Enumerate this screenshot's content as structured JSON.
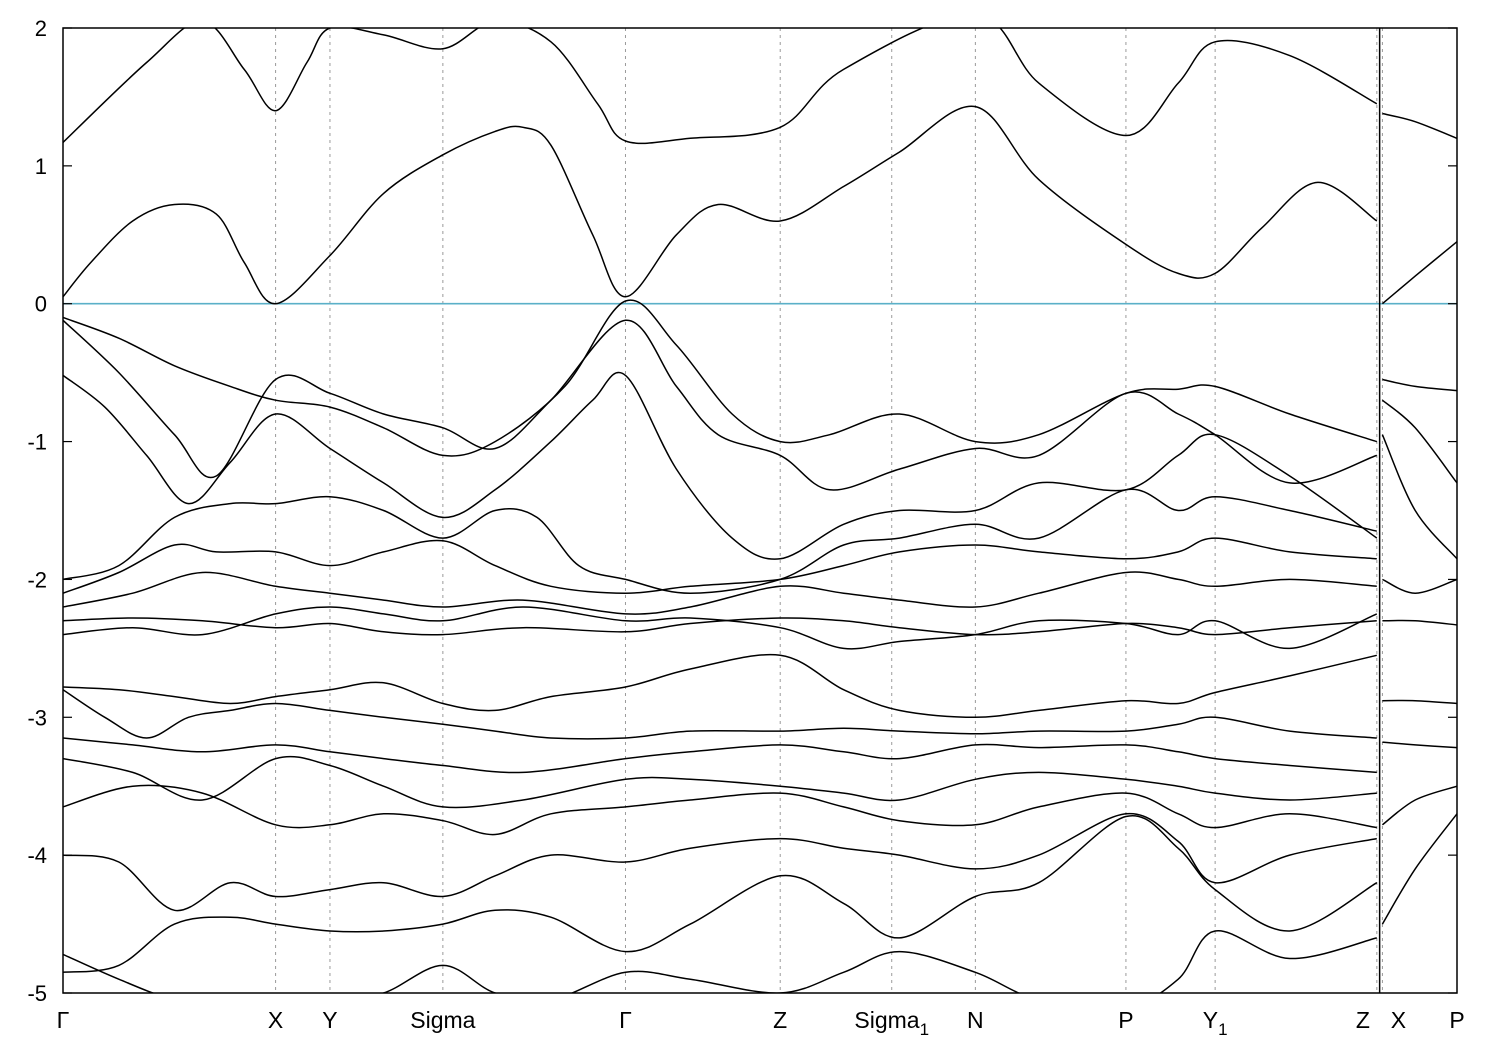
{
  "chart_data": {
    "type": "line",
    "title": "",
    "xlabel": "",
    "ylabel": "",
    "ylim": [
      -5,
      2
    ],
    "xlim": [
      0,
      1
    ],
    "yticks": [
      "-5",
      "-4",
      "-3",
      "-2",
      "-1",
      "0",
      "1",
      "2"
    ],
    "xticks": [
      {
        "label": "Γ",
        "x": 0.0
      },
      {
        "label": "X",
        "x": 0.1525
      },
      {
        "label": "Y",
        "x": 0.1915
      },
      {
        "label": "Sigma",
        "x": 0.2725
      },
      {
        "label": "Γ",
        "x": 0.4035
      },
      {
        "label": "Z",
        "x": 0.5145
      },
      {
        "label": "Sigma",
        "sub": "1",
        "x": 0.5945
      },
      {
        "label": "N",
        "x": 0.6545
      },
      {
        "label": "P",
        "x": 0.7625
      },
      {
        "label": "Y",
        "sub": "1",
        "x": 0.8265
      },
      {
        "label": "Z",
        "x": 0.9425
      },
      {
        "label": "X",
        "x": 0.9465
      },
      {
        "label": "P",
        "x": 1.0
      }
    ],
    "break_at": 0.9445,
    "fermi_level": 0,
    "grid": "vertical dashed at high-symmetry points",
    "legend": "none",
    "series": [
      {
        "x": [
          0,
          0.06,
          0.1,
          0.13,
          0.1525,
          0.175,
          0.1915,
          0.23,
          0.2725,
          0.31,
          0.35,
          0.3835,
          0.4035,
          0.45,
          0.5145,
          0.56,
          0.6545,
          0.7,
          0.7625,
          0.8,
          0.8265,
          0.88,
          0.9425
        ],
        "y": [
          1.17,
          1.75,
          2.05,
          1.7,
          1.4,
          1.75,
          2.0,
          1.95,
          1.85,
          2.05,
          1.9,
          1.45,
          1.18,
          1.2,
          1.28,
          1.7,
          2.1,
          1.6,
          1.22,
          1.6,
          1.9,
          1.8,
          1.45
        ]
      },
      {
        "x": [
          0,
          0.02,
          0.05,
          0.08,
          0.11,
          0.13,
          0.1525,
          0.1915,
          0.23,
          0.2725,
          0.31,
          0.33,
          0.35,
          0.38,
          0.4035,
          0.44,
          0.47,
          0.5145,
          0.56,
          0.6,
          0.6545,
          0.7,
          0.7625,
          0.8,
          0.8265,
          0.86,
          0.9,
          0.9425
        ],
        "y": [
          0.05,
          0.3,
          0.6,
          0.72,
          0.65,
          0.3,
          0.0,
          0.35,
          0.8,
          1.08,
          1.25,
          1.28,
          1.15,
          0.5,
          0.05,
          0.5,
          0.72,
          0.6,
          0.85,
          1.1,
          1.43,
          0.9,
          0.43,
          0.22,
          0.22,
          0.55,
          0.88,
          0.6
        ]
      },
      {
        "x": [
          0,
          0.04,
          0.08,
          0.12,
          0.1525,
          0.1915,
          0.23,
          0.2725,
          0.31,
          0.36,
          0.4035,
          0.44,
          0.48,
          0.5145,
          0.55,
          0.6,
          0.6545,
          0.7,
          0.7625,
          0.8,
          0.8265,
          0.88,
          0.9425
        ],
        "y": [
          -0.1,
          -0.25,
          -0.45,
          -0.6,
          -0.7,
          -0.75,
          -0.9,
          -1.1,
          -1.0,
          -0.6,
          0.02,
          -0.3,
          -0.8,
          -1.0,
          -0.95,
          -0.8,
          -1.0,
          -0.95,
          -0.65,
          -0.62,
          -0.6,
          -0.8,
          -1.0
        ]
      },
      {
        "x": [
          0,
          0.04,
          0.08,
          0.11,
          0.1525,
          0.1915,
          0.23,
          0.2725,
          0.31,
          0.35,
          0.4035,
          0.44,
          0.47,
          0.5145,
          0.55,
          0.6,
          0.6545,
          0.7,
          0.7625,
          0.8,
          0.8265,
          0.88,
          0.9425
        ],
        "y": [
          -0.12,
          -0.5,
          -0.95,
          -1.25,
          -0.55,
          -0.65,
          -0.8,
          -0.9,
          -1.05,
          -0.7,
          -0.12,
          -0.6,
          -0.95,
          -1.1,
          -1.35,
          -1.2,
          -1.05,
          -1.1,
          -0.65,
          -0.8,
          -0.95,
          -1.3,
          -1.1
        ]
      },
      {
        "x": [
          0,
          0.03,
          0.06,
          0.09,
          0.12,
          0.1525,
          0.1915,
          0.23,
          0.2725,
          0.31,
          0.35,
          0.38,
          0.4035,
          0.44,
          0.48,
          0.5145,
          0.56,
          0.6,
          0.6545,
          0.7,
          0.7625,
          0.8,
          0.8265,
          0.88,
          0.9425
        ],
        "y": [
          -0.52,
          -0.75,
          -1.1,
          -1.45,
          -1.15,
          -0.8,
          -1.05,
          -1.3,
          -1.55,
          -1.35,
          -1.0,
          -0.7,
          -0.52,
          -1.2,
          -1.7,
          -1.85,
          -1.6,
          -1.5,
          -1.5,
          -1.3,
          -1.35,
          -1.1,
          -0.95,
          -1.25,
          -1.7
        ]
      },
      {
        "x": [
          0,
          0.04,
          0.08,
          0.12,
          0.1525,
          0.1915,
          0.23,
          0.2725,
          0.31,
          0.34,
          0.37,
          0.4035,
          0.45,
          0.5145,
          0.56,
          0.6,
          0.6545,
          0.7,
          0.7625,
          0.8,
          0.8265,
          0.88,
          0.9425
        ],
        "y": [
          -2.0,
          -1.9,
          -1.55,
          -1.45,
          -1.45,
          -1.4,
          -1.5,
          -1.7,
          -1.5,
          -1.55,
          -1.9,
          -2.0,
          -2.1,
          -2.0,
          -1.75,
          -1.7,
          -1.6,
          -1.7,
          -1.35,
          -1.5,
          -1.4,
          -1.5,
          -1.65
        ]
      },
      {
        "x": [
          0,
          0.04,
          0.08,
          0.11,
          0.1525,
          0.1915,
          0.23,
          0.2725,
          0.31,
          0.35,
          0.4035,
          0.45,
          0.5145,
          0.56,
          0.6,
          0.6545,
          0.7,
          0.7625,
          0.8,
          0.8265,
          0.88,
          0.9425
        ],
        "y": [
          -2.1,
          -1.95,
          -1.75,
          -1.8,
          -1.8,
          -1.9,
          -1.8,
          -1.72,
          -1.9,
          -2.05,
          -2.1,
          -2.05,
          -2.0,
          -1.9,
          -1.8,
          -1.75,
          -1.8,
          -1.85,
          -1.8,
          -1.7,
          -1.8,
          -1.85
        ]
      },
      {
        "x": [
          0,
          0.05,
          0.1,
          0.1525,
          0.1915,
          0.23,
          0.2725,
          0.33,
          0.4035,
          0.45,
          0.5145,
          0.56,
          0.6,
          0.6545,
          0.7,
          0.7625,
          0.8,
          0.8265,
          0.88,
          0.9425
        ],
        "y": [
          -2.2,
          -2.1,
          -1.95,
          -2.05,
          -2.1,
          -2.15,
          -2.2,
          -2.15,
          -2.25,
          -2.2,
          -2.05,
          -2.1,
          -2.15,
          -2.2,
          -2.1,
          -1.95,
          -2.0,
          -2.05,
          -2.0,
          -2.05
        ]
      },
      {
        "x": [
          0,
          0.05,
          0.1,
          0.1525,
          0.1915,
          0.23,
          0.2725,
          0.33,
          0.4035,
          0.45,
          0.5145,
          0.56,
          0.6,
          0.6545,
          0.7,
          0.7625,
          0.8,
          0.8265,
          0.88,
          0.9425
        ],
        "y": [
          -2.3,
          -2.28,
          -2.3,
          -2.35,
          -2.32,
          -2.38,
          -2.4,
          -2.35,
          -2.38,
          -2.32,
          -2.28,
          -2.3,
          -2.35,
          -2.4,
          -2.38,
          -2.32,
          -2.35,
          -2.4,
          -2.35,
          -2.3
        ]
      },
      {
        "x": [
          0,
          0.05,
          0.1,
          0.1525,
          0.1915,
          0.23,
          0.2725,
          0.33,
          0.4035,
          0.45,
          0.5145,
          0.56,
          0.6,
          0.6545,
          0.7,
          0.7625,
          0.8,
          0.8265,
          0.88,
          0.9425
        ],
        "y": [
          -2.4,
          -2.35,
          -2.4,
          -2.25,
          -2.2,
          -2.25,
          -2.3,
          -2.2,
          -2.3,
          -2.28,
          -2.35,
          -2.5,
          -2.45,
          -2.4,
          -2.3,
          -2.32,
          -2.4,
          -2.3,
          -2.5,
          -2.25
        ]
      },
      {
        "x": [
          0,
          0.04,
          0.08,
          0.12,
          0.1525,
          0.1915,
          0.23,
          0.2725,
          0.31,
          0.35,
          0.4035,
          0.45,
          0.5145,
          0.56,
          0.6,
          0.6545,
          0.7,
          0.7625,
          0.8,
          0.8265,
          0.88,
          0.9425
        ],
        "y": [
          -2.78,
          -2.8,
          -2.85,
          -2.9,
          -2.85,
          -2.8,
          -2.75,
          -2.9,
          -2.95,
          -2.85,
          -2.78,
          -2.65,
          -2.55,
          -2.8,
          -2.95,
          -3.0,
          -2.95,
          -2.88,
          -2.9,
          -2.82,
          -2.7,
          -2.55
        ]
      },
      {
        "x": [
          0,
          0.03,
          0.06,
          0.09,
          0.12,
          0.1525,
          0.1915,
          0.23,
          0.2725,
          0.31,
          0.35,
          0.4035,
          0.45,
          0.5145,
          0.56,
          0.6,
          0.6545,
          0.7,
          0.7625,
          0.8,
          0.8265,
          0.88,
          0.9425
        ],
        "y": [
          -2.8,
          -3.0,
          -3.15,
          -3.0,
          -2.95,
          -2.9,
          -2.95,
          -3.0,
          -3.05,
          -3.1,
          -3.15,
          -3.15,
          -3.1,
          -3.1,
          -3.08,
          -3.1,
          -3.12,
          -3.1,
          -3.1,
          -3.05,
          -3.0,
          -3.1,
          -3.15
        ]
      },
      {
        "x": [
          0,
          0.05,
          0.1,
          0.1525,
          0.1915,
          0.23,
          0.2725,
          0.33,
          0.4035,
          0.45,
          0.5145,
          0.56,
          0.6,
          0.6545,
          0.7,
          0.7625,
          0.8,
          0.8265,
          0.88,
          0.9425
        ],
        "y": [
          -3.15,
          -3.2,
          -3.25,
          -3.2,
          -3.25,
          -3.3,
          -3.35,
          -3.4,
          -3.3,
          -3.25,
          -3.2,
          -3.25,
          -3.3,
          -3.2,
          -3.22,
          -3.2,
          -3.25,
          -3.3,
          -3.35,
          -3.4
        ]
      },
      {
        "x": [
          0,
          0.05,
          0.1,
          0.1525,
          0.1915,
          0.23,
          0.2725,
          0.33,
          0.4035,
          0.45,
          0.5145,
          0.56,
          0.6,
          0.6545,
          0.7,
          0.7625,
          0.8,
          0.8265,
          0.88,
          0.9425
        ],
        "y": [
          -3.3,
          -3.4,
          -3.6,
          -3.3,
          -3.35,
          -3.5,
          -3.65,
          -3.6,
          -3.45,
          -3.45,
          -3.5,
          -3.55,
          -3.6,
          -3.45,
          -3.4,
          -3.45,
          -3.5,
          -3.55,
          -3.6,
          -3.55
        ]
      },
      {
        "x": [
          0,
          0.05,
          0.1,
          0.1525,
          0.1915,
          0.23,
          0.2725,
          0.31,
          0.35,
          0.4035,
          0.45,
          0.5145,
          0.56,
          0.6,
          0.6545,
          0.7,
          0.7625,
          0.8,
          0.8265,
          0.88,
          0.9425
        ],
        "y": [
          -3.65,
          -3.5,
          -3.55,
          -3.78,
          -3.78,
          -3.7,
          -3.75,
          -3.85,
          -3.7,
          -3.65,
          -3.6,
          -3.55,
          -3.65,
          -3.75,
          -3.78,
          -3.65,
          -3.55,
          -3.7,
          -3.8,
          -3.7,
          -3.8
        ]
      },
      {
        "x": [
          0,
          0.04,
          0.08,
          0.12,
          0.1525,
          0.1915,
          0.23,
          0.2725,
          0.31,
          0.35,
          0.4035,
          0.45,
          0.5145,
          0.56,
          0.6,
          0.6545,
          0.7,
          0.7625,
          0.8,
          0.8265,
          0.88,
          0.9425
        ],
        "y": [
          -4.0,
          -4.05,
          -4.4,
          -4.2,
          -4.3,
          -4.25,
          -4.2,
          -4.3,
          -4.15,
          -4.0,
          -4.05,
          -3.95,
          -3.88,
          -3.95,
          -4.0,
          -4.1,
          -4.0,
          -3.7,
          -3.9,
          -4.2,
          -4.0,
          -3.88
        ]
      },
      {
        "x": [
          0,
          0.04,
          0.08,
          0.12,
          0.1525,
          0.1915,
          0.23,
          0.2725,
          0.31,
          0.35,
          0.4035,
          0.45,
          0.5145,
          0.56,
          0.6,
          0.6545,
          0.7,
          0.7625,
          0.8,
          0.8265,
          0.88,
          0.9425
        ],
        "y": [
          -4.85,
          -4.8,
          -4.5,
          -4.45,
          -4.5,
          -4.55,
          -4.55,
          -4.5,
          -4.4,
          -4.45,
          -4.7,
          -4.5,
          -4.15,
          -4.35,
          -4.6,
          -4.3,
          -4.2,
          -3.72,
          -3.95,
          -4.25,
          -4.55,
          -4.2
        ]
      },
      {
        "x": [
          0,
          0.04,
          0.08,
          0.12,
          0.1525,
          0.1915,
          0.23,
          0.2725,
          0.31,
          0.35,
          0.4035,
          0.45,
          0.5145,
          0.56,
          0.6,
          0.6545,
          0.7,
          0.7625,
          0.8,
          0.8265,
          0.88,
          0.9425
        ],
        "y": [
          -4.72,
          -4.9,
          -5.05,
          -5.1,
          -5.1,
          -5.05,
          -5.0,
          -4.8,
          -5.0,
          -5.05,
          -4.85,
          -4.9,
          -5.0,
          -4.85,
          -4.7,
          -4.85,
          -5.05,
          -5.1,
          -4.9,
          -4.55,
          -4.75,
          -4.6
        ]
      },
      {
        "x": [
          0.9465,
          0.97,
          1.0
        ],
        "y": [
          1.38,
          1.32,
          1.2
        ]
      },
      {
        "x": [
          0.9465,
          0.97,
          1.0
        ],
        "y": [
          0.0,
          0.2,
          0.45
        ]
      },
      {
        "x": [
          0.9465,
          0.97,
          1.0
        ],
        "y": [
          -0.55,
          -0.6,
          -0.63
        ]
      },
      {
        "x": [
          0.9465,
          0.97,
          1.0
        ],
        "y": [
          -0.7,
          -0.9,
          -1.3
        ]
      },
      {
        "x": [
          0.9465,
          0.97,
          1.0
        ],
        "y": [
          -0.95,
          -1.5,
          -1.85
        ]
      },
      {
        "x": [
          0.9465,
          0.97,
          1.0
        ],
        "y": [
          -2.0,
          -2.1,
          -2.0
        ]
      },
      {
        "x": [
          0.9465,
          0.97,
          1.0
        ],
        "y": [
          -2.3,
          -2.3,
          -2.33
        ]
      },
      {
        "x": [
          0.9465,
          0.97,
          1.0
        ],
        "y": [
          -2.88,
          -2.88,
          -2.9
        ]
      },
      {
        "x": [
          0.9465,
          0.97,
          1.0
        ],
        "y": [
          -3.18,
          -3.2,
          -3.22
        ]
      },
      {
        "x": [
          0.9465,
          0.97,
          1.0
        ],
        "y": [
          -3.78,
          -3.6,
          -3.5
        ]
      },
      {
        "x": [
          0.9465,
          0.97,
          1.0
        ],
        "y": [
          -4.5,
          -4.1,
          -3.7
        ]
      }
    ]
  }
}
